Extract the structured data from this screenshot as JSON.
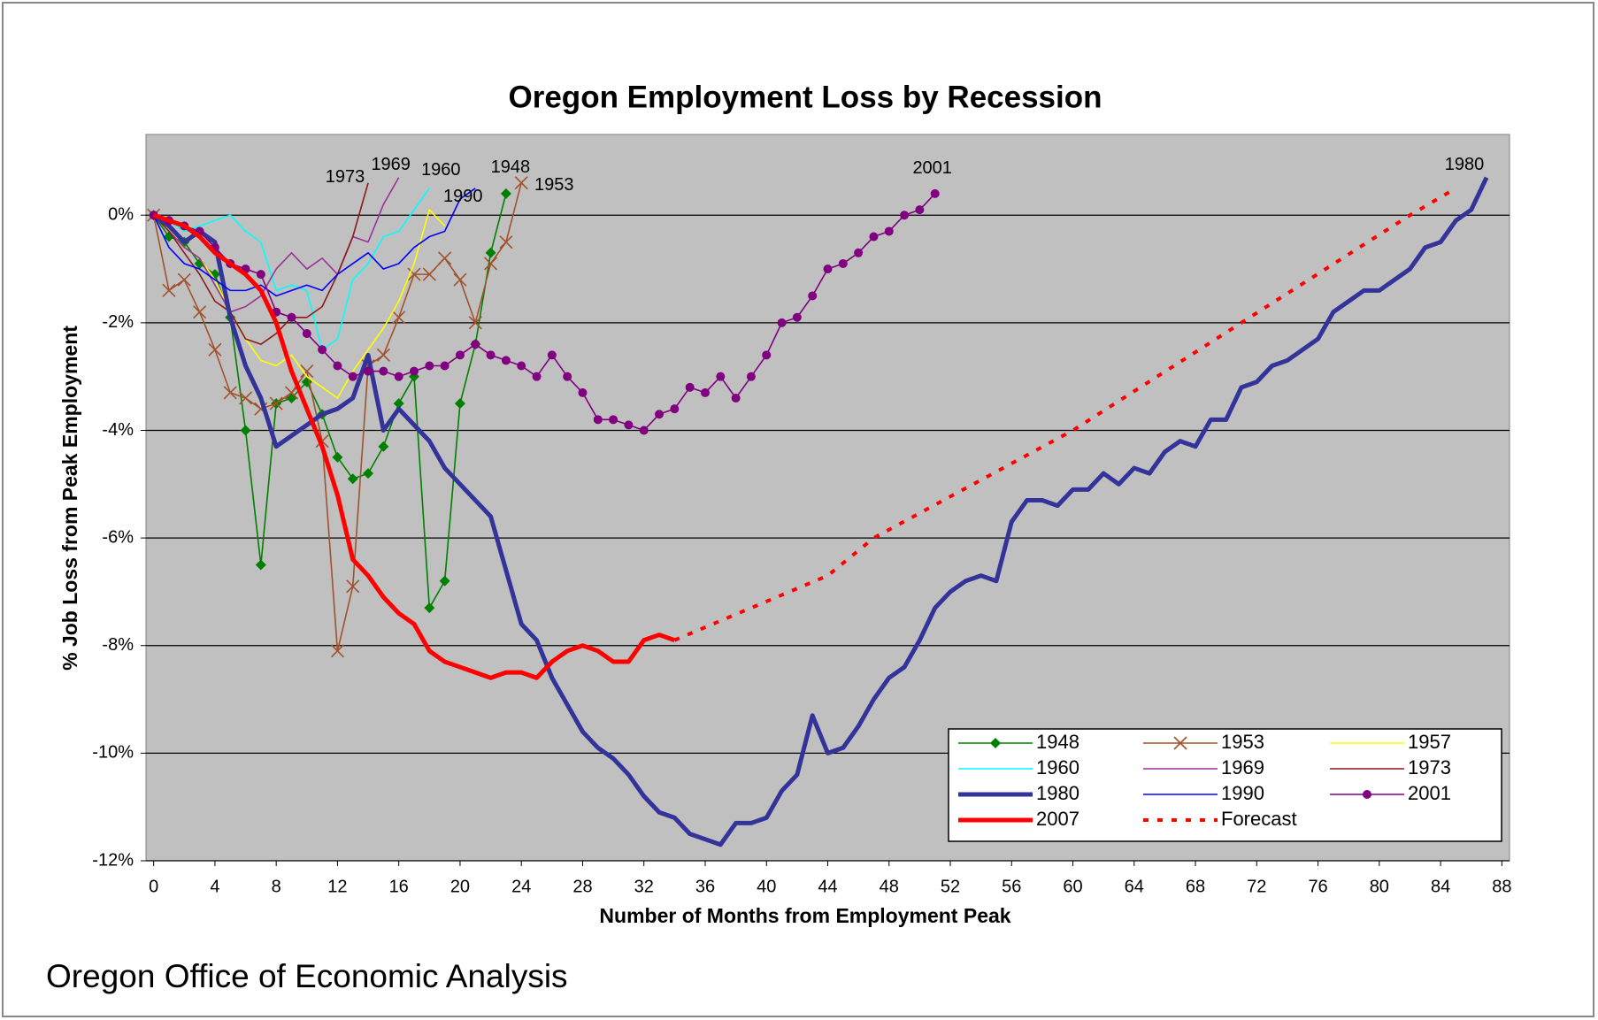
{
  "chart_data": {
    "type": "line",
    "title": "Oregon Employment Loss by Recession",
    "x_label": "Number of Months from Employment Peak",
    "y_label": "% Job Loss from Peak Employment",
    "source": "Oregon Office of Economic Analysis",
    "xlim": [
      -0.5,
      88.5
    ],
    "ylim": [
      -12,
      1.5
    ],
    "xticks": [
      0,
      4,
      8,
      12,
      16,
      20,
      24,
      28,
      32,
      36,
      40,
      44,
      48,
      52,
      56,
      60,
      64,
      68,
      72,
      76,
      80,
      84,
      88
    ],
    "yticks": [
      {
        "value": 0,
        "label": "0%"
      },
      {
        "value": -2,
        "label": "-2%"
      },
      {
        "value": -4,
        "label": "-4%"
      },
      {
        "value": -6,
        "label": "-6%"
      },
      {
        "value": -8,
        "label": "-8%"
      },
      {
        "value": -10,
        "label": "-10%"
      },
      {
        "value": -12,
        "label": "-12%"
      }
    ],
    "grid": true,
    "legend": "lower right",
    "series": [
      {
        "name": "1948",
        "color": "#008000",
        "marker": "diamond",
        "line_style": "thin",
        "x": [
          0,
          1,
          2,
          3,
          4,
          5,
          6,
          7,
          8,
          9,
          10,
          11,
          12,
          13,
          14,
          15,
          16,
          17,
          18,
          19,
          20,
          21,
          22,
          23
        ],
        "values": [
          0,
          -0.4,
          -0.5,
          -0.9,
          -1.1,
          -1.9,
          -4.0,
          -6.5,
          -3.5,
          -3.4,
          -3.1,
          -3.7,
          -4.5,
          -4.9,
          -4.8,
          -4.3,
          -3.5,
          -3.0,
          -7.3,
          -6.8,
          -3.5,
          -2.4,
          -0.7,
          0.4
        ]
      },
      {
        "name": "1953",
        "color": "#a0522d",
        "marker": "x",
        "line_style": "thin",
        "x": [
          0,
          1,
          2,
          3,
          4,
          5,
          6,
          7,
          8,
          9,
          10,
          11,
          12,
          13,
          14,
          15,
          16,
          17,
          18,
          19,
          20,
          21,
          22,
          23,
          24
        ],
        "values": [
          0,
          -1.4,
          -1.2,
          -1.8,
          -2.5,
          -3.3,
          -3.4,
          -3.6,
          -3.5,
          -3.3,
          -2.9,
          -4.2,
          -8.1,
          -6.9,
          -2.8,
          -2.6,
          -1.9,
          -1.1,
          -1.1,
          -0.8,
          -1.2,
          -2.0,
          -0.9,
          -0.5,
          0.6
        ]
      },
      {
        "name": "1957",
        "color": "#ffff00",
        "marker": "none",
        "line_style": "thin",
        "x": [
          0,
          1,
          2,
          3,
          4,
          5,
          6,
          7,
          8,
          9,
          10,
          11,
          12,
          13,
          14,
          15,
          16,
          17,
          18,
          19
        ],
        "values": [
          0,
          -0.3,
          -0.6,
          -0.8,
          -1.2,
          -1.8,
          -2.3,
          -2.7,
          -2.8,
          -2.6,
          -3.0,
          -3.2,
          -3.4,
          -2.9,
          -2.5,
          -2.1,
          -1.6,
          -0.9,
          0.1,
          -0.2
        ]
      },
      {
        "name": "1960",
        "color": "#00ffff",
        "marker": "none",
        "line_style": "thin",
        "x": [
          0,
          1,
          2,
          3,
          4,
          5,
          6,
          7,
          8,
          9,
          10,
          11,
          12,
          13,
          14,
          15,
          16,
          17,
          18
        ],
        "values": [
          0,
          -0.1,
          -0.3,
          -0.2,
          -0.1,
          0.0,
          -0.3,
          -0.5,
          -1.4,
          -1.3,
          -1.4,
          -2.5,
          -2.3,
          -1.2,
          -0.9,
          -0.4,
          -0.3,
          0.1,
          0.5
        ]
      },
      {
        "name": "1969",
        "color": "#993399",
        "marker": "none",
        "line_style": "thin",
        "x": [
          0,
          1,
          2,
          3,
          4,
          5,
          6,
          7,
          8,
          9,
          10,
          11,
          12,
          13,
          14,
          15,
          16
        ],
        "values": [
          0,
          -0.3,
          -0.6,
          -0.8,
          -1.3,
          -1.8,
          -1.7,
          -1.5,
          -1.0,
          -0.7,
          -1.0,
          -0.8,
          -1.1,
          -0.4,
          -0.5,
          0.2,
          0.7
        ]
      },
      {
        "name": "1973",
        "color": "#8b1a1a",
        "marker": "none",
        "line_style": "thin",
        "x": [
          0,
          1,
          2,
          3,
          4,
          5,
          6,
          7,
          8,
          9,
          10,
          11,
          12,
          13,
          14
        ],
        "values": [
          0,
          -0.3,
          -0.7,
          -1.1,
          -1.6,
          -1.8,
          -2.3,
          -2.4,
          -2.2,
          -1.9,
          -1.9,
          -1.7,
          -1.1,
          -0.4,
          0.6
        ]
      },
      {
        "name": "1980",
        "color": "#333399",
        "marker": "none",
        "line_style": "thick",
        "x": [
          0,
          1,
          2,
          3,
          4,
          5,
          6,
          7,
          8,
          9,
          10,
          11,
          12,
          13,
          14,
          15,
          16,
          17,
          18,
          19,
          20,
          21,
          22,
          23,
          24,
          25,
          26,
          27,
          28,
          29,
          30,
          31,
          32,
          33,
          34,
          35,
          36,
          37,
          38,
          39,
          40,
          41,
          42,
          43,
          44,
          45,
          46,
          47,
          48,
          49,
          50,
          51,
          52,
          53,
          54,
          55,
          56,
          57,
          58,
          59,
          60,
          61,
          62,
          63,
          64,
          65,
          66,
          67,
          68,
          69,
          70,
          71,
          72,
          73,
          74,
          75,
          76,
          77,
          78,
          79,
          80,
          81,
          82,
          83,
          84,
          85,
          86,
          87
        ],
        "values": [
          0,
          -0.2,
          -0.5,
          -0.3,
          -0.5,
          -1.9,
          -2.8,
          -3.4,
          -4.3,
          -4.1,
          -3.9,
          -3.7,
          -3.6,
          -3.4,
          -2.6,
          -4.0,
          -3.6,
          -3.9,
          -4.2,
          -4.7,
          -5.0,
          -5.3,
          -5.6,
          -6.6,
          -7.6,
          -7.9,
          -8.6,
          -9.1,
          -9.6,
          -9.9,
          -10.1,
          -10.4,
          -10.8,
          -11.1,
          -11.2,
          -11.5,
          -11.6,
          -11.7,
          -11.3,
          -11.3,
          -11.2,
          -10.7,
          -10.4,
          -9.3,
          -10.0,
          -9.9,
          -9.5,
          -9.0,
          -8.6,
          -8.4,
          -7.9,
          -7.3,
          -7.0,
          -6.8,
          -6.7,
          -6.8,
          -5.7,
          -5.3,
          -5.3,
          -5.4,
          -5.1,
          -5.1,
          -4.8,
          -5.0,
          -4.7,
          -4.8,
          -4.4,
          -4.2,
          -4.3,
          -3.8,
          -3.8,
          -3.2,
          -3.1,
          -2.8,
          -2.7,
          -2.5,
          -2.3,
          -1.8,
          -1.6,
          -1.4,
          -1.4,
          -1.2,
          -1.0,
          -0.6,
          -0.5,
          -0.1,
          0.1,
          0.7
        ]
      },
      {
        "name": "1990",
        "color": "#0000ff",
        "marker": "none",
        "line_style": "thin",
        "x": [
          0,
          1,
          2,
          3,
          4,
          5,
          6,
          7,
          8,
          9,
          10,
          11,
          12,
          13,
          14,
          15,
          16,
          17,
          18,
          19,
          20,
          21
        ],
        "values": [
          0,
          -0.6,
          -0.9,
          -1.0,
          -1.2,
          -1.4,
          -1.4,
          -1.3,
          -1.5,
          -1.4,
          -1.3,
          -1.4,
          -1.1,
          -0.9,
          -0.7,
          -1.0,
          -0.9,
          -0.6,
          -0.4,
          -0.3,
          0.3,
          0.5
        ]
      },
      {
        "name": "2001",
        "color": "#800080",
        "marker": "circle",
        "line_style": "thin",
        "x": [
          0,
          1,
          2,
          3,
          4,
          5,
          6,
          7,
          8,
          9,
          10,
          11,
          12,
          13,
          14,
          15,
          16,
          17,
          18,
          19,
          20,
          21,
          22,
          23,
          24,
          25,
          26,
          27,
          28,
          29,
          30,
          31,
          32,
          33,
          34,
          35,
          36,
          37,
          38,
          39,
          40,
          41,
          42,
          43,
          44,
          45,
          46,
          47,
          48,
          49,
          50,
          51
        ],
        "values": [
          0,
          -0.1,
          -0.2,
          -0.3,
          -0.6,
          -0.9,
          -1.0,
          -1.1,
          -1.8,
          -1.9,
          -2.2,
          -2.5,
          -2.8,
          -3.0,
          -2.9,
          -2.9,
          -3.0,
          -2.9,
          -2.8,
          -2.8,
          -2.6,
          -2.4,
          -2.6,
          -2.7,
          -2.8,
          -3.0,
          -2.6,
          -3.0,
          -3.3,
          -3.8,
          -3.8,
          -3.9,
          -4.0,
          -3.7,
          -3.6,
          -3.2,
          -3.3,
          -3.0,
          -3.4,
          -3.0,
          -2.6,
          -2.0,
          -1.9,
          -1.5,
          -1.0,
          -0.9,
          -0.7,
          -0.4,
          -0.3,
          0.0,
          0.1,
          0.4
        ]
      },
      {
        "name": "2007",
        "color": "#ff0000",
        "marker": "none",
        "line_style": "thick",
        "x": [
          0,
          1,
          2,
          3,
          4,
          5,
          6,
          7,
          8,
          9,
          10,
          11,
          12,
          13,
          14,
          15,
          16,
          17,
          18,
          19,
          20,
          21,
          22,
          23,
          24,
          25,
          26,
          27,
          28,
          29,
          30,
          31,
          32,
          33,
          34
        ],
        "values": [
          0,
          -0.1,
          -0.2,
          -0.4,
          -0.7,
          -0.9,
          -1.1,
          -1.4,
          -2.0,
          -2.9,
          -3.6,
          -4.3,
          -5.2,
          -6.4,
          -6.7,
          -7.1,
          -7.4,
          -7.6,
          -8.1,
          -8.3,
          -8.4,
          -8.5,
          -8.6,
          -8.5,
          -8.5,
          -8.6,
          -8.3,
          -8.1,
          -8.0,
          -8.1,
          -8.3,
          -8.3,
          -7.9,
          -7.8,
          -7.9
        ]
      },
      {
        "name": "Forecast",
        "color": "#ff0000",
        "marker": "none",
        "line_style": "dotted",
        "x": [
          34,
          44,
          47,
          60,
          71,
          82,
          85
        ],
        "values": [
          -7.9,
          -6.7,
          -6.0,
          -4.0,
          -2.0,
          0,
          0.5
        ]
      }
    ]
  }
}
